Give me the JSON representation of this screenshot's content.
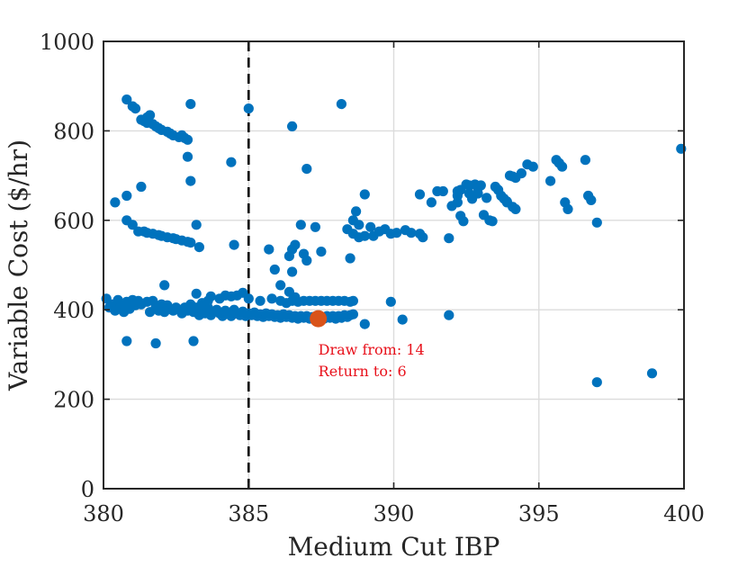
{
  "chart_data": {
    "type": "scatter",
    "title": "",
    "xlabel": "Medium Cut IBP",
    "ylabel": "Variable Cost ($/hr)",
    "xlim": [
      380,
      400
    ],
    "ylim": [
      0,
      1000
    ],
    "xticks": [
      "380",
      "385",
      "390",
      "395",
      "400"
    ],
    "yticks": [
      "0",
      "200",
      "400",
      "600",
      "800",
      "1000"
    ],
    "grid": true,
    "colors": {
      "points": "#0072bd",
      "highlight": "#d95319",
      "annotation": "#e8111b",
      "reference_line": "#000000"
    },
    "reference_line": {
      "x": 385,
      "style": "dashed"
    },
    "highlight_point": {
      "x": 387.4,
      "y": 380
    },
    "annotation": {
      "x": 387.4,
      "y": 300,
      "lines": [
        "Draw from: 14",
        "Return to: 6"
      ]
    },
    "series": [
      {
        "points": [
          [
            380.1,
            425
          ],
          [
            380.2,
            405
          ],
          [
            380.3,
            412
          ],
          [
            380.4,
            398
          ],
          [
            380.5,
            422
          ],
          [
            380.6,
            408
          ],
          [
            380.7,
            395
          ],
          [
            380.8,
            418
          ],
          [
            380.9,
            402
          ],
          [
            381.0,
            422
          ],
          [
            381.1,
            410
          ],
          [
            381.2,
            420
          ],
          [
            381.3,
            412
          ],
          [
            381.5,
            418
          ],
          [
            381.6,
            395
          ],
          [
            381.7,
            420
          ],
          [
            381.8,
            405
          ],
          [
            381.9,
            398
          ],
          [
            382.0,
            412
          ],
          [
            382.1,
            395
          ],
          [
            382.2,
            410
          ],
          [
            382.3,
            402
          ],
          [
            382.4,
            398
          ],
          [
            382.5,
            405
          ],
          [
            382.6,
            400
          ],
          [
            382.7,
            392
          ],
          [
            382.8,
            405
          ],
          [
            382.9,
            398
          ],
          [
            383.0,
            412
          ],
          [
            383.1,
            395
          ],
          [
            383.2,
            405
          ],
          [
            383.3,
            388
          ],
          [
            383.4,
            398
          ],
          [
            383.5,
            392
          ],
          [
            383.6,
            405
          ],
          [
            383.7,
            388
          ],
          [
            383.8,
            396
          ],
          [
            383.9,
            400
          ],
          [
            384.0,
            392
          ],
          [
            384.1,
            386
          ],
          [
            384.2,
            398
          ],
          [
            384.3,
            392
          ],
          [
            384.4,
            386
          ],
          [
            384.5,
            400
          ],
          [
            384.6,
            392
          ],
          [
            384.7,
            388
          ],
          [
            384.8,
            396
          ],
          [
            384.9,
            386
          ],
          [
            385.0,
            392
          ],
          [
            385.1,
            388
          ],
          [
            385.2,
            394
          ],
          [
            385.3,
            386
          ],
          [
            385.4,
            390
          ],
          [
            385.5,
            384
          ],
          [
            385.6,
            392
          ],
          [
            385.7,
            386
          ],
          [
            385.8,
            390
          ],
          [
            385.9,
            384
          ],
          [
            386.0,
            388
          ],
          [
            386.1,
            382
          ],
          [
            386.2,
            390
          ],
          [
            386.3,
            384
          ],
          [
            386.4,
            388
          ],
          [
            386.5,
            382
          ],
          [
            386.6,
            386
          ],
          [
            386.7,
            380
          ],
          [
            386.8,
            386
          ],
          [
            386.9,
            382
          ],
          [
            387.0,
            386
          ],
          [
            387.1,
            380
          ],
          [
            387.2,
            384
          ],
          [
            387.3,
            380
          ],
          [
            387.5,
            384
          ],
          [
            387.6,
            380
          ],
          [
            387.7,
            386
          ],
          [
            387.8,
            382
          ],
          [
            387.9,
            386
          ],
          [
            388.0,
            380
          ],
          [
            388.1,
            386
          ],
          [
            388.2,
            382
          ],
          [
            388.3,
            388
          ],
          [
            388.4,
            384
          ],
          [
            388.5,
            388
          ],
          [
            388.6,
            390
          ],
          [
            383.2,
            436
          ],
          [
            383.4,
            415
          ],
          [
            383.6,
            420
          ],
          [
            383.7,
            430
          ],
          [
            384.0,
            425
          ],
          [
            384.2,
            432
          ],
          [
            384.4,
            430
          ],
          [
            384.6,
            432
          ],
          [
            384.8,
            438
          ],
          [
            385.0,
            425
          ],
          [
            385.4,
            420
          ],
          [
            385.8,
            425
          ],
          [
            386.1,
            420
          ],
          [
            386.3,
            415
          ],
          [
            386.5,
            420
          ],
          [
            386.7,
            418
          ],
          [
            386.9,
            420
          ],
          [
            387.1,
            420
          ],
          [
            387.3,
            420
          ],
          [
            387.5,
            420
          ],
          [
            387.7,
            420
          ],
          [
            387.9,
            420
          ],
          [
            388.1,
            420
          ],
          [
            388.3,
            420
          ],
          [
            388.5,
            418
          ],
          [
            388.6,
            420
          ],
          [
            380.8,
            330
          ],
          [
            381.8,
            325
          ],
          [
            383.1,
            330
          ],
          [
            389.0,
            368
          ],
          [
            390.3,
            378
          ],
          [
            391.9,
            388
          ],
          [
            389.9,
            418
          ],
          [
            382.1,
            455
          ],
          [
            386.1,
            455
          ],
          [
            386.4,
            440
          ],
          [
            386.6,
            428
          ],
          [
            380.4,
            640
          ],
          [
            380.8,
            600
          ],
          [
            381.0,
            590
          ],
          [
            381.2,
            575
          ],
          [
            381.4,
            575
          ],
          [
            381.5,
            572
          ],
          [
            381.7,
            570
          ],
          [
            381.9,
            567
          ],
          [
            382.0,
            565
          ],
          [
            382.2,
            562
          ],
          [
            382.4,
            560
          ],
          [
            382.5,
            558
          ],
          [
            382.7,
            555
          ],
          [
            382.9,
            552
          ],
          [
            383.0,
            550
          ],
          [
            383.2,
            590
          ],
          [
            383.3,
            540
          ],
          [
            384.5,
            545
          ],
          [
            385.7,
            535
          ],
          [
            385.9,
            490
          ],
          [
            386.4,
            520
          ],
          [
            386.5,
            535
          ],
          [
            386.6,
            545
          ],
          [
            386.5,
            485
          ],
          [
            386.8,
            590
          ],
          [
            386.9,
            525
          ],
          [
            387.0,
            510
          ],
          [
            387.3,
            585
          ],
          [
            387.5,
            530
          ],
          [
            388.4,
            580
          ],
          [
            388.5,
            515
          ],
          [
            388.6,
            600
          ],
          [
            388.7,
            620
          ],
          [
            388.8,
            590
          ],
          [
            388.6,
            570
          ],
          [
            388.8,
            562
          ],
          [
            389.0,
            565
          ],
          [
            389.2,
            585
          ],
          [
            389.3,
            565
          ],
          [
            389.5,
            575
          ],
          [
            389.7,
            580
          ],
          [
            389.9,
            570
          ],
          [
            390.1,
            572
          ],
          [
            390.4,
            578
          ],
          [
            390.6,
            572
          ],
          [
            390.9,
            570
          ],
          [
            391.0,
            562
          ],
          [
            391.9,
            560
          ],
          [
            380.8,
            870
          ],
          [
            381.0,
            855
          ],
          [
            381.1,
            850
          ],
          [
            381.3,
            825
          ],
          [
            381.4,
            822
          ],
          [
            381.5,
            818
          ],
          [
            381.7,
            815
          ],
          [
            381.8,
            810
          ],
          [
            381.9,
            806
          ],
          [
            382.0,
            802
          ],
          [
            382.2,
            798
          ],
          [
            382.3,
            794
          ],
          [
            382.4,
            790
          ],
          [
            382.6,
            786
          ],
          [
            382.7,
            790
          ],
          [
            382.8,
            784
          ],
          [
            382.9,
            780
          ],
          [
            381.5,
            830
          ],
          [
            381.6,
            835
          ],
          [
            382.9,
            742
          ],
          [
            383.0,
            860
          ],
          [
            383.0,
            688
          ],
          [
            384.4,
            730
          ],
          [
            385.0,
            850
          ],
          [
            386.5,
            810
          ],
          [
            387.0,
            715
          ],
          [
            388.2,
            860
          ],
          [
            380.8,
            655
          ],
          [
            381.3,
            675
          ],
          [
            389.0,
            658
          ],
          [
            390.9,
            658
          ],
          [
            391.3,
            640
          ],
          [
            391.5,
            665
          ],
          [
            391.7,
            665
          ],
          [
            392.0,
            632
          ],
          [
            392.2,
            640
          ],
          [
            392.3,
            610
          ],
          [
            392.4,
            598
          ],
          [
            392.5,
            680
          ],
          [
            392.6,
            660
          ],
          [
            392.7,
            648
          ],
          [
            392.8,
            680
          ],
          [
            392.9,
            660
          ],
          [
            393.0,
            678
          ],
          [
            393.1,
            612
          ],
          [
            393.2,
            650
          ],
          [
            393.3,
            600
          ],
          [
            393.4,
            598
          ],
          [
            393.6,
            668
          ],
          [
            393.7,
            655
          ],
          [
            393.8,
            648
          ],
          [
            393.9,
            642
          ],
          [
            394.0,
            700
          ],
          [
            394.1,
            698
          ],
          [
            394.2,
            695
          ],
          [
            394.4,
            705
          ],
          [
            394.6,
            725
          ],
          [
            394.8,
            720
          ],
          [
            395.4,
            688
          ],
          [
            395.6,
            735
          ],
          [
            395.7,
            728
          ],
          [
            395.8,
            720
          ],
          [
            395.9,
            640
          ],
          [
            396.0,
            625
          ],
          [
            396.6,
            735
          ],
          [
            396.7,
            655
          ],
          [
            396.8,
            645
          ],
          [
            397.0,
            595
          ],
          [
            392.2,
            655
          ],
          [
            392.3,
            668
          ],
          [
            392.6,
            678
          ],
          [
            393.5,
            675
          ],
          [
            392.2,
            665
          ],
          [
            392.9,
            672
          ],
          [
            393.9,
            640
          ],
          [
            394.1,
            630
          ],
          [
            394.2,
            625
          ],
          [
            397.0,
            238
          ],
          [
            398.9,
            258
          ],
          [
            399.9,
            760
          ]
        ]
      }
    ]
  }
}
